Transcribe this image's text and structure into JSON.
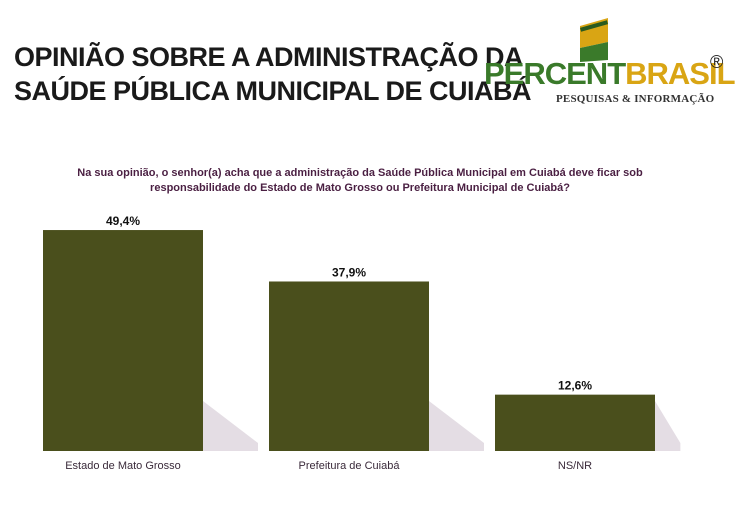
{
  "title": {
    "line1": "OPINIÃO SOBRE A ADMINISTRAÇÃO DA",
    "line2": "SAÚDE PÚBLICA MUNICIPAL DE CUIABÁ"
  },
  "logo": {
    "part1": "PERCENT",
    "part2": "BRASIL",
    "registered": "®",
    "tagline": "PESQUISAS & INFORMAÇÃO"
  },
  "question": {
    "line1": "Na sua opinião, o senhor(a) acha que a administração da Saúde Pública Municipal em Cuiabá deve ficar sob",
    "line2": "responsabilidade do Estado de Mato Grosso ou Prefeitura Municipal de Cuiabá?"
  },
  "colors": {
    "bar": "#4a4f1c",
    "shadow": "#e4dde4",
    "logo_green": "#3a7a2a",
    "logo_gold": "#d9a514"
  },
  "chart_data": {
    "type": "bar",
    "categories": [
      "Estado de Mato Grosso",
      "Prefeitura de Cuiabá",
      "NS/NR"
    ],
    "values": [
      49.4,
      37.9,
      12.6
    ],
    "value_labels": [
      "49,4%",
      "37,9%",
      "12,6%"
    ],
    "ylim": [
      0,
      55
    ],
    "grid": false,
    "legend": "none"
  }
}
